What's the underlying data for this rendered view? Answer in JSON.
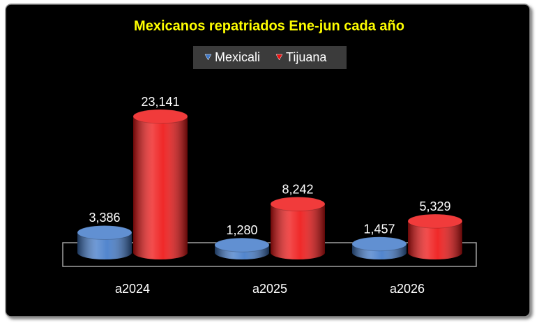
{
  "chart_data": {
    "type": "bar3d",
    "title": "Mexicanos repatriados Ene-jun cada año",
    "categories": [
      "a2024",
      "a2025",
      "a2026"
    ],
    "series": [
      {
        "name": "Mexicali",
        "color": "#3f78c8",
        "values": [
          3386,
          1280,
          1457
        ],
        "value_labels": [
          "3,386",
          "1,280",
          "1,457"
        ]
      },
      {
        "name": "Tijuana",
        "color": "#ee1111",
        "values": [
          23141,
          8242,
          5329
        ],
        "value_labels": [
          "23,141",
          "8,242",
          "5,329"
        ]
      }
    ],
    "legend": "top"
  }
}
